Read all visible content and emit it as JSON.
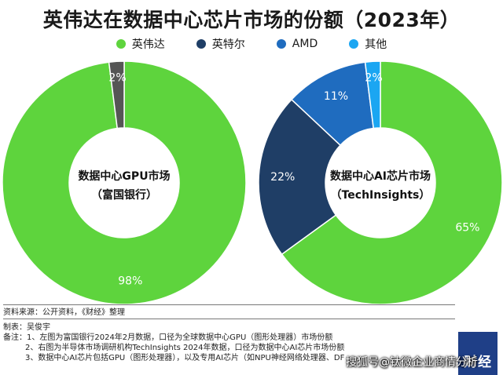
{
  "title": "英伟达在数据中心芯片市场的份额（2023年）",
  "legend": [
    {
      "label": "英伟达",
      "color": "#5ed43d"
    },
    {
      "label": "英特尔",
      "color": "#1f3e66"
    },
    {
      "label": "AMD",
      "color": "#1f6cbf"
    },
    {
      "label": "其他",
      "color": "#1ba6f2"
    }
  ],
  "chart_data": [
    {
      "type": "pie",
      "center_label": [
        "数据中心GPU市场",
        "（富国银行）"
      ],
      "slices": [
        {
          "name": "英伟达",
          "value": 98,
          "label": "98%",
          "color": "#5ed43d"
        },
        {
          "name": "其他",
          "value": 2,
          "label": "2%",
          "color": "#555555"
        }
      ]
    },
    {
      "type": "pie",
      "center_label": [
        "数据中心AI芯片市场",
        "（TechInsights）"
      ],
      "slices": [
        {
          "name": "英伟达",
          "value": 65,
          "label": "65%",
          "color": "#5ed43d"
        },
        {
          "name": "英特尔",
          "value": 22,
          "label": "22%",
          "color": "#1f3e66"
        },
        {
          "name": "AMD",
          "value": 11,
          "label": "11%",
          "color": "#1f6cbf"
        },
        {
          "name": "其他",
          "value": 2,
          "label": "2%",
          "color": "#1ba6f2"
        }
      ]
    }
  ],
  "footer": {
    "source": "资料来源：公开资料，《财经》整理",
    "maker": "制表：吴俊宇",
    "notes": [
      "备注：1、左图为富国银行2024年2月数据，口径为全球数据中心GPU（图形处理器）市场份额",
      "2、右图为半导体市场调研机构TechInsights 2024年数据，口径为数据中心AI芯片市场份额",
      "3、数据中心AI芯片包括GPU（图形处理器），以及专用AI芯片（如NPU神经网络处理器、DF"
    ]
  },
  "logo_text": "财经",
  "watermark": "搜狐号@钛微企业商情分析"
}
